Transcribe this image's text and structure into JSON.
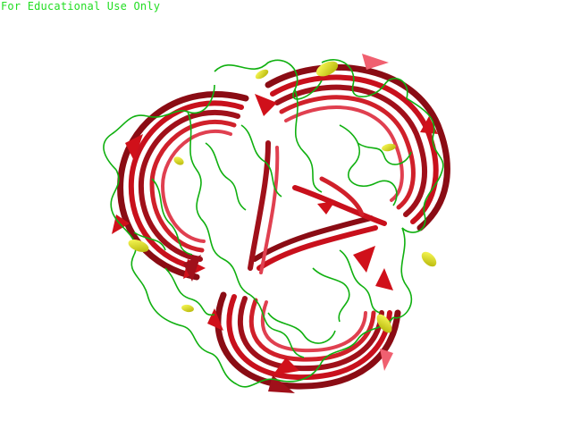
{
  "watermark": {
    "text": "For Educational Use Only",
    "color": "#22dd22"
  },
  "colors": {
    "background": "#ffffff",
    "strand_dark": "#a0101a",
    "strand_mid": "#d0101a",
    "strand_light": "#f06070",
    "helix": "#f0f000",
    "helix_shade": "#b0b000",
    "coil": "#10b010"
  }
}
